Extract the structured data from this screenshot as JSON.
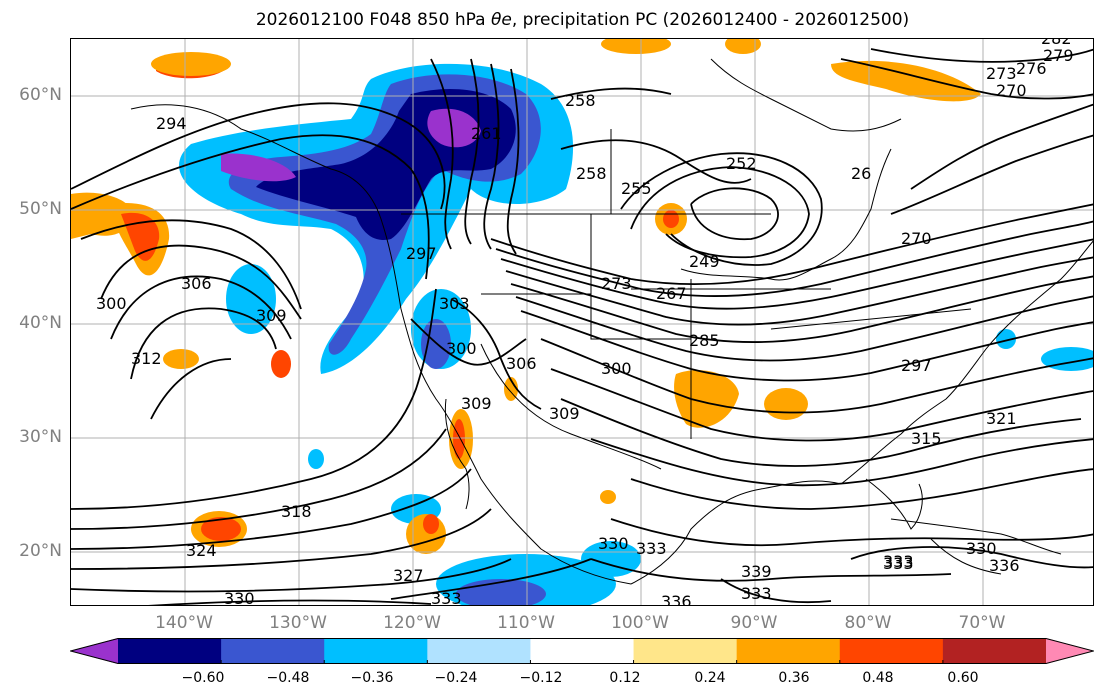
{
  "title_main": "2026012100 F048 850 hPa ",
  "title_symbol": "θe",
  "title_rest": ", precipitation PC (2026012400 - 2026012500)",
  "map": {
    "lat_labels": [
      "60°N",
      "50°N",
      "40°N",
      "30°N",
      "20°N"
    ],
    "lon_labels": [
      "140°W",
      "130°W",
      "120°W",
      "110°W",
      "100°W",
      "90°W",
      "80°W",
      "70°W"
    ],
    "extent": {
      "lon_min": -150,
      "lon_max": -60,
      "lat_min": 15,
      "lat_max": 65
    },
    "contour_labels": [
      "294",
      "258",
      "261",
      "258",
      "252",
      "26",
      "276",
      "270",
      "273",
      "279",
      "282",
      "255",
      "297",
      "303",
      "300",
      "306",
      "309",
      "249",
      "273",
      "267",
      "285",
      "312",
      "309",
      "300",
      "306",
      "309",
      "297",
      "315",
      "321",
      "318",
      "324",
      "327",
      "330",
      "333",
      "330",
      "333",
      "336",
      "330",
      "333",
      "333",
      "336",
      "333",
      "339",
      "300",
      "270"
    ]
  },
  "colorbar": {
    "colors": [
      "#9a32cd",
      "#000080",
      "#3a56d0",
      "#00bfff",
      "#b0e2ff",
      "#ffffff",
      "#ffe68a",
      "#ffa500",
      "#ff4500",
      "#b22222",
      "#ff89b4"
    ],
    "tick_labels": [
      "−0.60",
      "−0.48",
      "−0.36",
      "−0.24",
      "−0.12",
      "0.12",
      "0.24",
      "0.36",
      "0.48",
      "0.60"
    ],
    "extend": "both"
  },
  "colors": {
    "axis_label": "#808080",
    "contour": "#000000",
    "grid": "#b0b0b0"
  }
}
